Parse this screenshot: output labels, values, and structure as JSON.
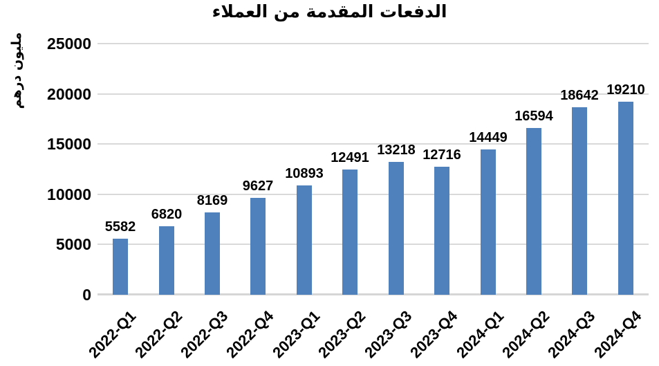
{
  "chart_data": {
    "type": "bar",
    "title": "الدفعات المقدمة من العملاء",
    "xlabel": "",
    "ylabel": "مليون درهم",
    "categories": [
      "2022-Q1",
      "2022-Q2",
      "2022-Q3",
      "2022-Q4",
      "2023-Q1",
      "2023-Q2",
      "2023-Q3",
      "2023-Q4",
      "2024-Q1",
      "2024-Q2",
      "2024-Q3",
      "2024-Q4"
    ],
    "values": [
      5582,
      6820,
      8169,
      9627,
      10893,
      12491,
      13218,
      12716,
      14449,
      16594,
      18642,
      19210
    ],
    "ylim": [
      0,
      25000
    ],
    "ytick_interval": 5000,
    "ytick_labels": [
      "0",
      "5000",
      "10000",
      "15000",
      "20000",
      "25000"
    ],
    "grid": true,
    "legend": false,
    "data_labels": true,
    "bar_color": "#4F81BD",
    "gridline_color": "#D9D9D9",
    "axisline_color": "#D6D6D6",
    "text_color": "#000000"
  }
}
